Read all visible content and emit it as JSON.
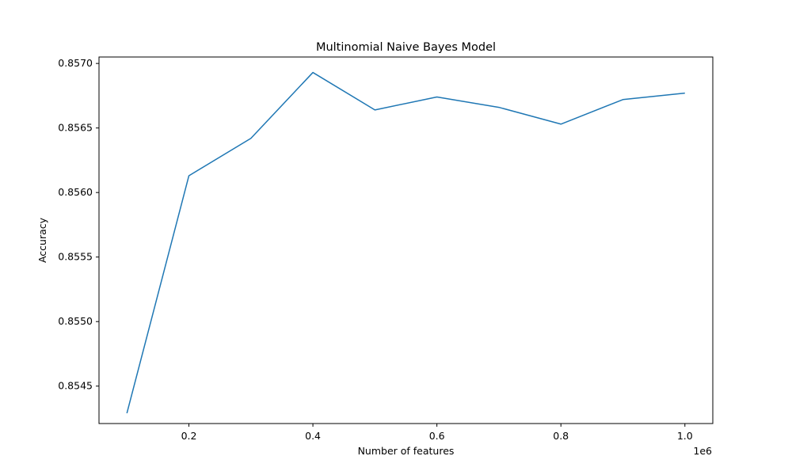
{
  "chart_data": {
    "type": "line",
    "title": "Multinomial Naive Bayes Model",
    "xlabel": "Number of features",
    "ylabel": "Accuracy",
    "x_offset_label": "1e6",
    "xlim": [
      0.055,
      1.045
    ],
    "ylim": [
      0.85421,
      0.85705
    ],
    "x_ticks": [
      {
        "value": 0.2,
        "label": "0.2"
      },
      {
        "value": 0.4,
        "label": "0.4"
      },
      {
        "value": 0.6,
        "label": "0.6"
      },
      {
        "value": 0.8,
        "label": "0.8"
      },
      {
        "value": 1.0,
        "label": "1.0"
      }
    ],
    "y_ticks": [
      {
        "value": 0.8545,
        "label": "0.8545"
      },
      {
        "value": 0.855,
        "label": "0.8550"
      },
      {
        "value": 0.8555,
        "label": "0.8555"
      },
      {
        "value": 0.856,
        "label": "0.8560"
      },
      {
        "value": 0.8565,
        "label": "0.8565"
      },
      {
        "value": 0.857,
        "label": "0.8570"
      }
    ],
    "grid": false,
    "series": [
      {
        "color": "#1f77b4",
        "x": [
          0.1,
          0.2,
          0.3,
          0.4,
          0.5,
          0.6,
          0.7,
          0.8,
          0.9,
          1.0
        ],
        "y": [
          0.85429,
          0.85613,
          0.85642,
          0.85693,
          0.85664,
          0.85674,
          0.85666,
          0.85653,
          0.85672,
          0.85677
        ]
      }
    ]
  }
}
